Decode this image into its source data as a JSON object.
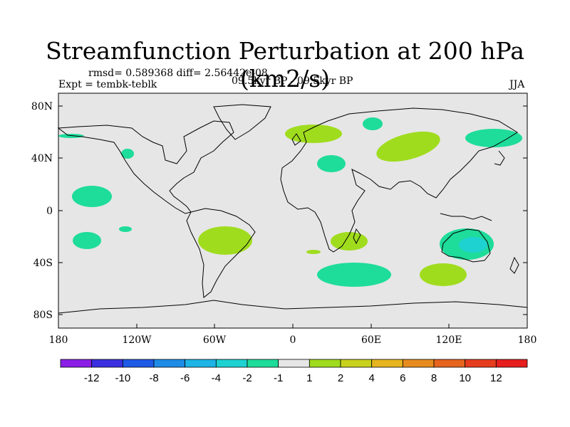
{
  "title": "Streamfunction Perturbation at 200 hPa (km2/s)",
  "stats": "rmsd= 0.589368 diff= 2.56442e-08",
  "expt": "Expt = tembk-teblk",
  "period": "09.5kyr BP - 09.5kyr BP",
  "season": "JJA",
  "lat_ticks": [
    "80N",
    "40N",
    "0",
    "40S",
    "80S"
  ],
  "lon_ticks": [
    "180",
    "120W",
    "60W",
    "0",
    "60E",
    "120E",
    "180"
  ],
  "colorbar": {
    "labels": [
      "-12",
      "-10",
      "-8",
      "-6",
      "-4",
      "-2",
      "-1",
      "1",
      "2",
      "4",
      "6",
      "8",
      "10",
      "12"
    ],
    "colors": [
      "#8a1ee6",
      "#3a2fe0",
      "#1e5ae6",
      "#1e8ce6",
      "#1eb4e6",
      "#1ed2d2",
      "#1edc9a",
      "#e6e6e6",
      "#a0dc1e",
      "#c8d21e",
      "#e6b41e",
      "#e68c1e",
      "#e6641e",
      "#e63c1e",
      "#e61e1e"
    ]
  },
  "background_color": "#e6e6e6"
}
